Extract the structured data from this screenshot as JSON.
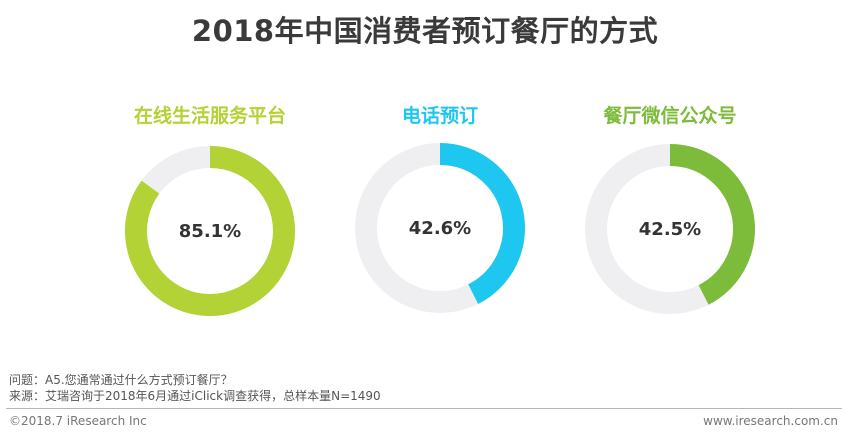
{
  "chart_data": {
    "type": "pie",
    "subtype": "donut",
    "title": "2018年中国消费者预订餐厅的方式",
    "series": [
      {
        "name": "在线生活服务平台",
        "value": 85.1,
        "value_label": "85.1%",
        "color": "#b3d235"
      },
      {
        "name": "电话预订",
        "value": 42.6,
        "value_label": "42.6%",
        "color": "#1ec7ef"
      },
      {
        "name": "餐厅微信公众号",
        "value": 42.5,
        "value_label": "42.5%",
        "color": "#7dbb3a"
      }
    ],
    "track_color": "#efeff1",
    "max": 100
  },
  "footer": {
    "question": "问题：A5.您通常通过什么方式预订餐厅？",
    "source": "来源：艾瑞咨询于2018年6月通过iClick调查获得，总样本量N=1490",
    "copyright": "©2018.7 iResearch Inc",
    "website": "www.iresearch.com.cn"
  }
}
